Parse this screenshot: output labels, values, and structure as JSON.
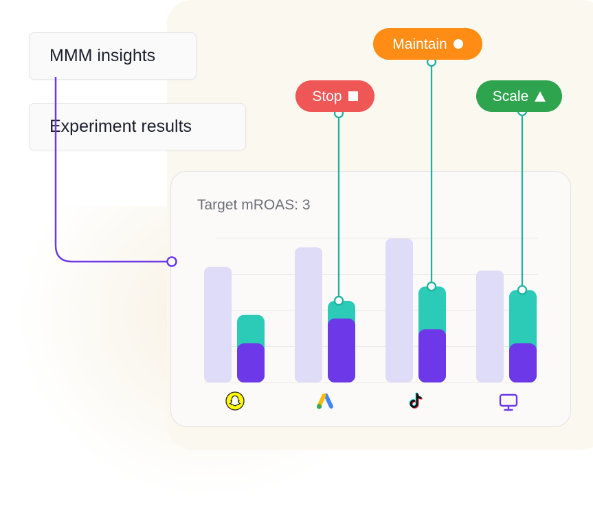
{
  "insights": {
    "mmm_label": "MMM insights",
    "experiment_label": "Experiment results"
  },
  "tags": {
    "stop": {
      "label": "Stop",
      "color": "#ef5656",
      "icon": "square-icon"
    },
    "maintain": {
      "label": "Maintain",
      "color": "#ff8c14",
      "icon": "circle-icon"
    },
    "scale": {
      "label": "Scale",
      "color": "#2ea44f",
      "icon": "triangle-up-icon"
    }
  },
  "colors": {
    "connector_purple": "#6c38e8",
    "connector_teal": "#1eb1a0",
    "bar_light": "#dfdcf7",
    "bar_purple": "#6c38e8",
    "bar_teal": "#2ccbb7"
  },
  "chart_data": {
    "type": "bar",
    "title": "Target mROAS: 3",
    "categories": [
      "snapchat-icon",
      "google-ads-icon",
      "tiktok-icon",
      "tv-icon"
    ],
    "series": [
      {
        "values": [
          3.25,
          3.8,
          4.05,
          3.15
        ]
      },
      {
        "values": [
          1.1,
          1.8,
          1.5,
          1.1
        ]
      },
      {
        "values": [
          0.8,
          0.5,
          1.2,
          1.5
        ]
      }
    ],
    "ylim": [
      0,
      4.25
    ],
    "grid": true,
    "recommendations": [
      "",
      "Stop",
      "Maintain",
      "Scale"
    ]
  }
}
